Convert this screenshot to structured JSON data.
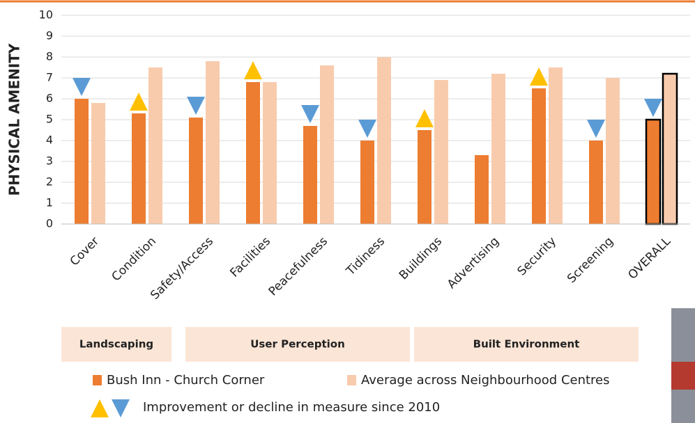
{
  "chart_data": {
    "type": "bar",
    "y_label": "PHYSICAL AMENITY",
    "categories": [
      "Cover",
      "Condition",
      "Safety/Access",
      "Facilities",
      "Peacefulness",
      "Tidiness",
      "Buildings",
      "Advertising",
      "Security",
      "Screening",
      "OVERALL"
    ],
    "series": [
      {
        "name": "Bush Inn - Church Corner",
        "color": "#ed7d31",
        "values": [
          6.0,
          5.3,
          5.1,
          6.8,
          4.7,
          4.0,
          4.5,
          3.3,
          6.5,
          4.0,
          5.0
        ]
      },
      {
        "name": "Average across Neighbourhood Centres",
        "color": "#f8cbad",
        "values": [
          5.8,
          7.5,
          7.8,
          6.8,
          7.6,
          8.0,
          6.9,
          7.2,
          7.5,
          7.0,
          7.2
        ]
      }
    ],
    "trend": [
      "down",
      "up",
      "down",
      "up",
      "down",
      "down",
      "up",
      null,
      "up",
      "down",
      "down"
    ],
    "trend_colors": {
      "up": "#ffc000",
      "down": "#5b9bd5"
    },
    "trend_label": "Improvement or decline in measure since 2010",
    "outlined_index": 10,
    "groups": [
      {
        "label": "Landscaping",
        "from": 0,
        "to": 1
      },
      {
        "label": "User Perception",
        "from": 2,
        "to": 5
      },
      {
        "label": "Built Environment",
        "from": 6,
        "to": 9
      }
    ],
    "ylim": [
      0,
      10
    ],
    "yticks": [
      0,
      1,
      2,
      3,
      4,
      5,
      6,
      7,
      8,
      9,
      10
    ],
    "grid": true
  }
}
